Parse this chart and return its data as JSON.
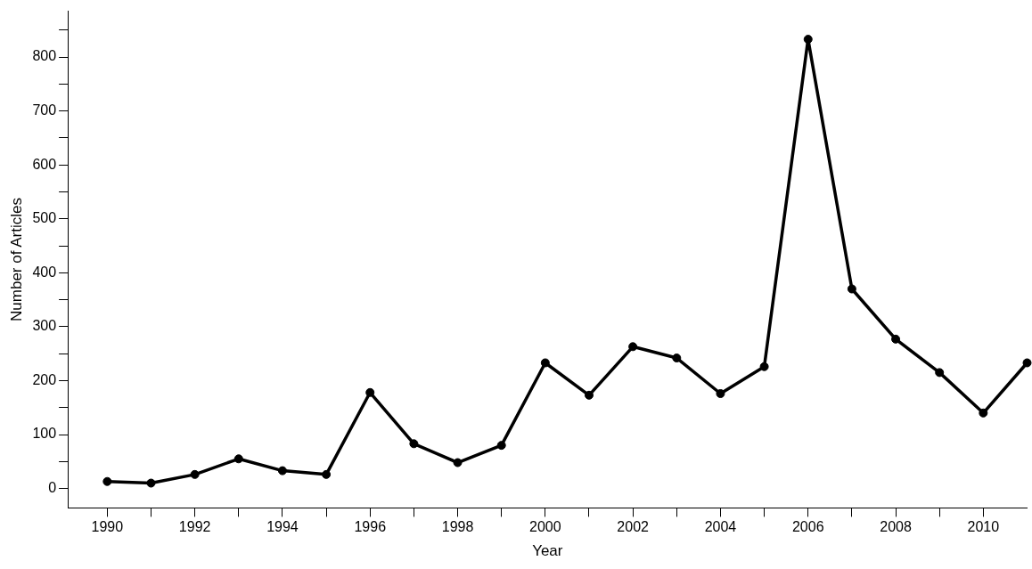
{
  "chart_data": {
    "type": "line",
    "xlabel": "Year",
    "ylabel": "Number of Articles",
    "x": [
      1990,
      1991,
      1992,
      1993,
      1994,
      1995,
      1996,
      1997,
      1998,
      1999,
      2000,
      2001,
      2002,
      2003,
      2004,
      2005,
      2006,
      2007,
      2008,
      2009,
      2010,
      2011
    ],
    "series": [
      {
        "color": "#000000",
        "values": [
          13,
          10,
          26,
          55,
          33,
          26,
          178,
          83,
          48,
          80,
          233,
          173,
          263,
          242,
          176,
          226,
          833,
          370,
          277,
          215,
          140,
          233
        ]
      }
    ],
    "xlim": [
      1989.1,
      2011
    ],
    "xticks": [
      1990,
      {
        "value": 1991,
        "label": null
      },
      1992,
      {
        "value": 1993,
        "label": null
      },
      1994,
      {
        "value": 1995,
        "label": null
      },
      1996,
      {
        "value": 1997,
        "label": null
      },
      1998,
      {
        "value": 1999,
        "label": null
      },
      2000,
      {
        "value": 2001,
        "label": null
      },
      2002,
      {
        "value": 2003,
        "label": null
      },
      2004,
      {
        "value": 2005,
        "label": null
      },
      2006,
      {
        "value": 2007,
        "label": null
      },
      2008,
      {
        "value": 2009,
        "label": null
      },
      2010
    ],
    "ylim": [
      -36,
      885
    ],
    "yticks": [
      0,
      {
        "value": 50,
        "label": null
      },
      100,
      {
        "value": 150,
        "label": null
      },
      200,
      {
        "value": 250,
        "label": null
      },
      300,
      {
        "value": 350,
        "label": null
      },
      400,
      {
        "value": 450,
        "label": null
      },
      500,
      {
        "value": 550,
        "label": null
      },
      600,
      {
        "value": 650,
        "label": null
      },
      700,
      {
        "value": 750,
        "label": null
      },
      800,
      {
        "value": 850,
        "label": null
      }
    ],
    "grid": false,
    "legend": false,
    "marker": "circle",
    "line_style": "solid"
  }
}
